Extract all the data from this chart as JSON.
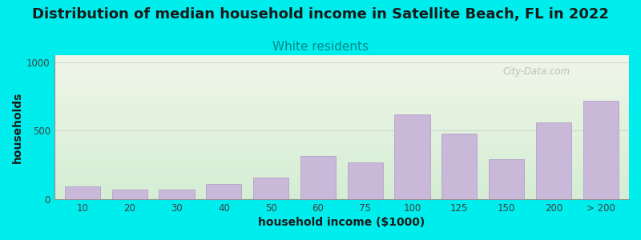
{
  "title": "Distribution of median household income in Satellite Beach, FL in 2022",
  "subtitle": "White residents",
  "xlabel": "household income ($1000)",
  "ylabel": "households",
  "bar_labels": [
    "10",
    "20",
    "30",
    "40",
    "50",
    "60",
    "75",
    "100",
    "125",
    "150",
    "200",
    "> 200"
  ],
  "bar_values": [
    95,
    70,
    70,
    110,
    155,
    315,
    270,
    620,
    480,
    290,
    560,
    715
  ],
  "bar_color": "#c9b8d8",
  "bar_edge_color": "#b5a0cc",
  "background_color": "#00eded",
  "plot_bg_top": "#f0f5e8",
  "plot_bg_bottom": "#d4edd4",
  "ylim": [
    0,
    1050
  ],
  "yticks": [
    0,
    500,
    1000
  ],
  "title_fontsize": 13,
  "subtitle_fontsize": 11,
  "subtitle_color": "#008888",
  "axis_label_fontsize": 10,
  "tick_fontsize": 8.5,
  "watermark_text": "City-Data.com",
  "watermark_color": "#b0b8b0"
}
